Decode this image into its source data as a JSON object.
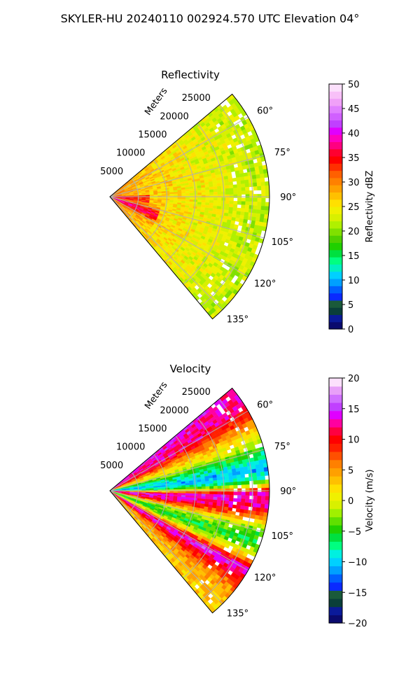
{
  "title": "SKYLER-HU  20240110  002924.570 UTC Elevation 04°",
  "chart_data": [
    {
      "type": "polar-sector",
      "title": "Reflectivity",
      "range_label": "Meters",
      "range_ticks": [
        5000,
        10000,
        15000,
        20000,
        25000
      ],
      "range_tick_labels": [
        "5000",
        "10000",
        "15000",
        "20000",
        "25000"
      ],
      "rmax": 28000,
      "azimuth_range": [
        50,
        140
      ],
      "azimuth_ticks": [
        60,
        75,
        90,
        105,
        120,
        135
      ],
      "azimuth_tick_labels": [
        "60°",
        "75°",
        "90°",
        "105°",
        "120°",
        "135°"
      ],
      "grid": true,
      "colorbar": {
        "label": "Reflectivity dBZ",
        "vmin": 0,
        "vmax": 50,
        "ticks": [
          0,
          5,
          10,
          15,
          20,
          25,
          30,
          35,
          40,
          45,
          50
        ],
        "tick_labels": [
          "0",
          "5",
          "10",
          "15",
          "20",
          "25",
          "30",
          "35",
          "40",
          "45",
          "50"
        ],
        "colors": [
          "#0a0a6e",
          "#0a1a9a",
          "#0a3f3a",
          "#1a5a3a",
          "#0a2aff",
          "#0060ff",
          "#00a0ff",
          "#00d0ff",
          "#00f0c0",
          "#00ff80",
          "#00e040",
          "#20d000",
          "#50d000",
          "#80e000",
          "#b0f000",
          "#d8f000",
          "#f0f000",
          "#ffe000",
          "#ffc000",
          "#ffa000",
          "#ff8000",
          "#ff6000",
          "#ff3000",
          "#ff0000",
          "#ff0030",
          "#ff0080",
          "#ff00c0",
          "#e000ff",
          "#c040ff",
          "#d060ff",
          "#e080ff",
          "#f0a0f8",
          "#f8c0f8",
          "#fce0fc"
        ]
      },
      "field_summary": [
        {
          "range": [
            0,
            9000
          ],
          "azimuth": [
            110,
            125
          ],
          "value": 37
        },
        {
          "range": [
            0,
            12000
          ],
          "azimuth": [
            95,
            135
          ],
          "value": 31
        },
        {
          "range": [
            10000,
            28000
          ],
          "azimuth": [
            55,
            135
          ],
          "value": 24
        }
      ]
    },
    {
      "type": "polar-sector",
      "title": "Velocity",
      "range_label": "Meters",
      "range_ticks": [
        5000,
        10000,
        15000,
        20000,
        25000
      ],
      "range_tick_labels": [
        "5000",
        "10000",
        "15000",
        "20000",
        "25000"
      ],
      "rmax": 28000,
      "azimuth_range": [
        50,
        140
      ],
      "azimuth_ticks": [
        60,
        75,
        90,
        105,
        120,
        135
      ],
      "azimuth_tick_labels": [
        "60°",
        "75°",
        "90°",
        "105°",
        "120°",
        "135°"
      ],
      "grid": true,
      "colorbar": {
        "label": "Velocity (m/s)",
        "vmin": -20,
        "vmax": 20,
        "ticks": [
          -20,
          -15,
          -10,
          -5,
          0,
          5,
          10,
          15,
          20
        ],
        "tick_labels": [
          "−20",
          "−15",
          "−10",
          "−5",
          "0",
          "5",
          "10",
          "15",
          "20"
        ],
        "colors": [
          "#0a0a6e",
          "#0a1a9a",
          "#0a3f3a",
          "#1a5a3a",
          "#0a2aff",
          "#0060ff",
          "#00a0ff",
          "#00d0ff",
          "#00f0e0",
          "#00ff80",
          "#00e040",
          "#20d000",
          "#60e000",
          "#a0f000",
          "#d8f000",
          "#f0f000",
          "#ffe000",
          "#ffc000",
          "#ffa000",
          "#ff8000",
          "#ff5000",
          "#ff2000",
          "#ff0000",
          "#ff0040",
          "#ff00a0",
          "#e000ff",
          "#c040ff",
          "#d070ff",
          "#e8a0f8",
          "#fce0fc"
        ]
      },
      "field_summary": [
        {
          "azimuth": 62,
          "value": 12
        },
        {
          "azimuth": 75,
          "value": 0
        },
        {
          "azimuth": 85,
          "value": -10
        },
        {
          "azimuth": 95,
          "value": 14
        },
        {
          "azimuth": 103,
          "value": 8
        },
        {
          "azimuth": 112,
          "value": -5
        },
        {
          "azimuth": 124,
          "value": 15
        },
        {
          "azimuth": 135,
          "value": 6
        }
      ]
    }
  ]
}
